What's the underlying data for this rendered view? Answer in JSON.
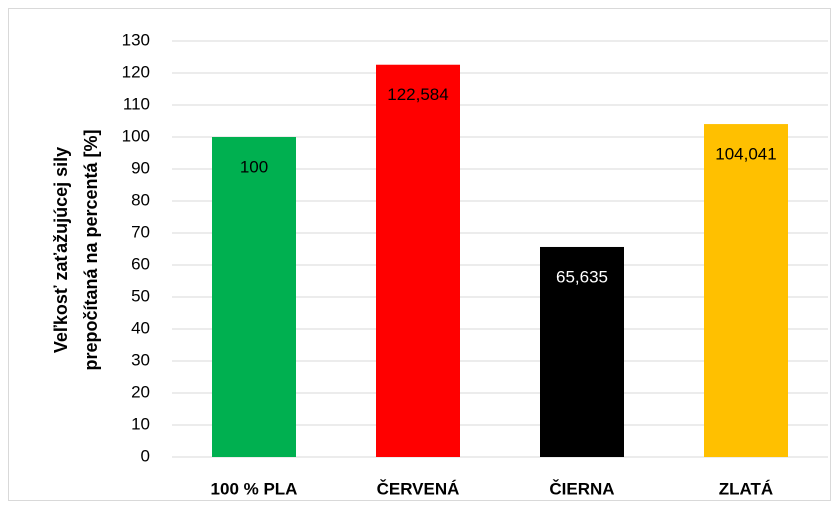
{
  "chart_data": {
    "type": "bar",
    "ylabel": [
      "Veľkosť zaťažujúcej sily",
      "prepočítaná na percentá [%]"
    ],
    "categories": [
      "100 % PLA",
      "ČERVENÁ",
      "ČIERNA",
      "ZLATÁ"
    ],
    "values": [
      100,
      122.584,
      65.635,
      104.041
    ],
    "value_labels": [
      "100",
      "122,584",
      "65,635",
      "104,041"
    ],
    "colors": [
      "#00b050",
      "#ff0000",
      "#000000",
      "#ffc000"
    ],
    "ylim": [
      0,
      130
    ],
    "yticks": [
      0,
      10,
      20,
      30,
      40,
      50,
      60,
      70,
      80,
      90,
      100,
      110,
      120,
      130
    ],
    "grid": true
  }
}
